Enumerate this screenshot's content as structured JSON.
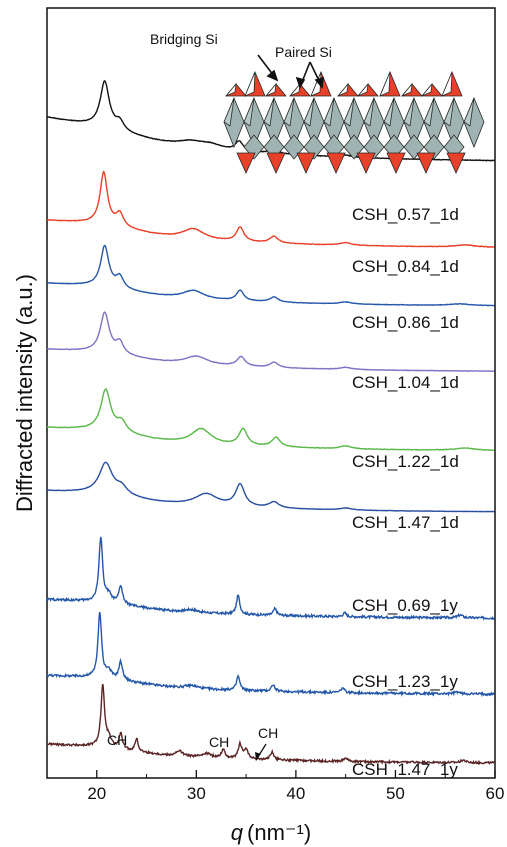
{
  "chart_data": {
    "type": "line",
    "xlabel_var": "q",
    "xlabel_unit": "(nm⁻¹)",
    "ylabel": "Diffracted intensity (a.u.)",
    "xlim": [
      15,
      60
    ],
    "xticks": [
      20,
      30,
      40,
      50,
      60
    ],
    "yticks_shown": false,
    "grid": false,
    "series": [
      {
        "name": "CSH_0.57_1d",
        "color": "#111111",
        "baseline": 2.6,
        "peaks": [
          [
            20.8,
            1.85,
            0.55
          ],
          [
            22.3,
            0.35,
            0.5
          ],
          [
            29.5,
            0.22,
            1.6
          ],
          [
            31.5,
            0.16,
            1.3
          ],
          [
            34.3,
            0.38,
            0.45
          ],
          [
            37.8,
            0.2,
            0.5
          ],
          [
            45.0,
            0.08,
            0.7
          ]
        ]
      },
      {
        "name": "CSH_0.84_1d",
        "color": "#e8412a",
        "baseline": 1.5,
        "peaks": [
          [
            20.7,
            2.0,
            0.45
          ],
          [
            22.3,
            0.5,
            0.45
          ],
          [
            29.7,
            0.4,
            1.3
          ],
          [
            34.4,
            0.55,
            0.45
          ],
          [
            37.8,
            0.25,
            0.5
          ],
          [
            45.0,
            0.1,
            0.7
          ],
          [
            57.0,
            0.08,
            1.2
          ]
        ]
      },
      {
        "name": "CSH_0.86_1d",
        "color": "#2457a8",
        "baseline": 1.55,
        "peaks": [
          [
            20.8,
            1.95,
            0.5
          ],
          [
            22.3,
            0.55,
            0.45
          ],
          [
            29.7,
            0.4,
            1.3
          ],
          [
            34.4,
            0.5,
            0.45
          ],
          [
            37.8,
            0.25,
            0.5
          ],
          [
            45.0,
            0.1,
            0.7
          ],
          [
            56.5,
            0.08,
            1.2
          ]
        ]
      },
      {
        "name": "CSH_1.04_1d",
        "color": "#7f72c2",
        "baseline": 1.5,
        "peaks": [
          [
            20.8,
            1.9,
            0.55
          ],
          [
            22.3,
            0.55,
            0.45
          ],
          [
            30.0,
            0.4,
            1.4
          ],
          [
            34.5,
            0.45,
            0.5
          ],
          [
            37.8,
            0.25,
            0.5
          ],
          [
            45.0,
            0.1,
            0.7
          ]
        ]
      },
      {
        "name": "CSH_1.22_1d",
        "color": "#5ab84a",
        "baseline": 1.4,
        "peaks": [
          [
            20.9,
            1.75,
            0.6
          ],
          [
            22.5,
            0.45,
            0.6
          ],
          [
            30.5,
            0.65,
            1.2
          ],
          [
            34.7,
            0.7,
            0.5
          ],
          [
            38.0,
            0.4,
            0.5
          ],
          [
            45.0,
            0.12,
            0.7
          ],
          [
            57.0,
            0.1,
            1.2
          ]
        ]
      },
      {
        "name": "CSH_1.47_1d",
        "color": "#2a4fa0",
        "baseline": 1.5,
        "peaks": [
          [
            20.9,
            1.55,
            0.8
          ],
          [
            22.5,
            0.4,
            0.7
          ],
          [
            31.0,
            0.6,
            1.4
          ],
          [
            34.4,
            1.1,
            0.55
          ],
          [
            37.8,
            0.3,
            0.6
          ],
          [
            45.0,
            0.1,
            0.7
          ]
        ]
      },
      {
        "name": "CSH_0.69_1y",
        "color": "#2457a8",
        "baseline": 1.4,
        "peaks": [
          [
            20.4,
            3.4,
            0.22
          ],
          [
            21.2,
            0.4,
            0.35
          ],
          [
            22.4,
            0.95,
            0.22
          ],
          [
            29.5,
            0.15,
            0.8
          ],
          [
            34.2,
            1.0,
            0.2
          ],
          [
            37.9,
            0.35,
            0.2
          ],
          [
            44.9,
            0.2,
            0.2
          ],
          [
            56.5,
            0.15,
            0.3
          ]
        ]
      },
      {
        "name": "CSH_1.23_1y",
        "color": "#2457a8",
        "baseline": 1.4,
        "peaks": [
          [
            20.3,
            3.4,
            0.22
          ],
          [
            21.2,
            0.4,
            0.35
          ],
          [
            22.4,
            0.95,
            0.22
          ],
          [
            29.5,
            0.15,
            0.8
          ],
          [
            34.2,
            0.75,
            0.2
          ],
          [
            37.7,
            0.35,
            0.2
          ],
          [
            44.7,
            0.25,
            0.2
          ],
          [
            56.2,
            0.1,
            0.3
          ]
        ]
      },
      {
        "name": "CSH_1.47_1y",
        "color": "#5a2424",
        "baseline": 1.6,
        "peaks": [
          [
            20.6,
            3.6,
            0.22
          ],
          [
            21.2,
            0.5,
            0.3
          ],
          [
            22.4,
            0.9,
            0.2
          ],
          [
            24.0,
            0.75,
            0.18
          ],
          [
            28.3,
            0.3,
            0.4
          ],
          [
            31.0,
            0.25,
            0.6
          ],
          [
            32.7,
            0.5,
            0.22
          ],
          [
            34.4,
            0.85,
            0.22
          ],
          [
            35.0,
            0.55,
            0.22
          ],
          [
            37.6,
            0.45,
            0.22
          ],
          [
            45.0,
            0.2,
            0.25
          ],
          [
            56.8,
            0.15,
            0.3
          ]
        ]
      }
    ],
    "annotations": [
      {
        "text": "CH",
        "x": 24.0,
        "series": "CSH_1.47_1y"
      },
      {
        "text": "CH",
        "x": 32.7,
        "series": "CSH_1.47_1y"
      },
      {
        "text": "CH",
        "x": 35.0,
        "series": "CSH_1.47_1y"
      }
    ],
    "inset": {
      "bridging_label": "Bridging Si",
      "paired_label": "Paired Si",
      "tetrahedra_color": "#e8412a",
      "octahedra_color": "#9fb4b2"
    }
  }
}
